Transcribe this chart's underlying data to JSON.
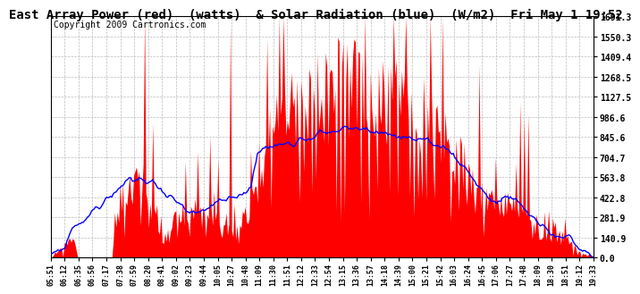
{
  "title": "East Array Power (red)  (watts)  & Solar Radiation (blue)  (W/m2)  Fri May 1 19:52",
  "copyright": "Copyright 2009 Cartronics.com",
  "yticks": [
    0.0,
    140.9,
    281.9,
    422.8,
    563.8,
    704.7,
    845.6,
    986.6,
    1127.5,
    1268.5,
    1409.4,
    1550.3,
    1691.3
  ],
  "ymax": 1691.3,
  "xtick_labels": [
    "05:51",
    "06:12",
    "06:35",
    "06:56",
    "07:17",
    "07:38",
    "07:59",
    "08:20",
    "08:41",
    "09:02",
    "09:23",
    "09:44",
    "10:05",
    "10:27",
    "10:48",
    "11:09",
    "11:30",
    "11:51",
    "12:12",
    "12:33",
    "12:54",
    "13:15",
    "13:36",
    "13:57",
    "14:18",
    "14:39",
    "15:00",
    "15:21",
    "15:42",
    "16:03",
    "16:24",
    "16:45",
    "17:06",
    "17:27",
    "17:48",
    "18:09",
    "18:30",
    "18:51",
    "19:12",
    "19:33"
  ],
  "bg_color": "#ffffff",
  "plot_bg_color": "#ffffff",
  "grid_color": "#bbbbbb",
  "red_color": "#ff0000",
  "blue_color": "#0000ff",
  "title_fontsize": 10,
  "copyright_fontsize": 7
}
